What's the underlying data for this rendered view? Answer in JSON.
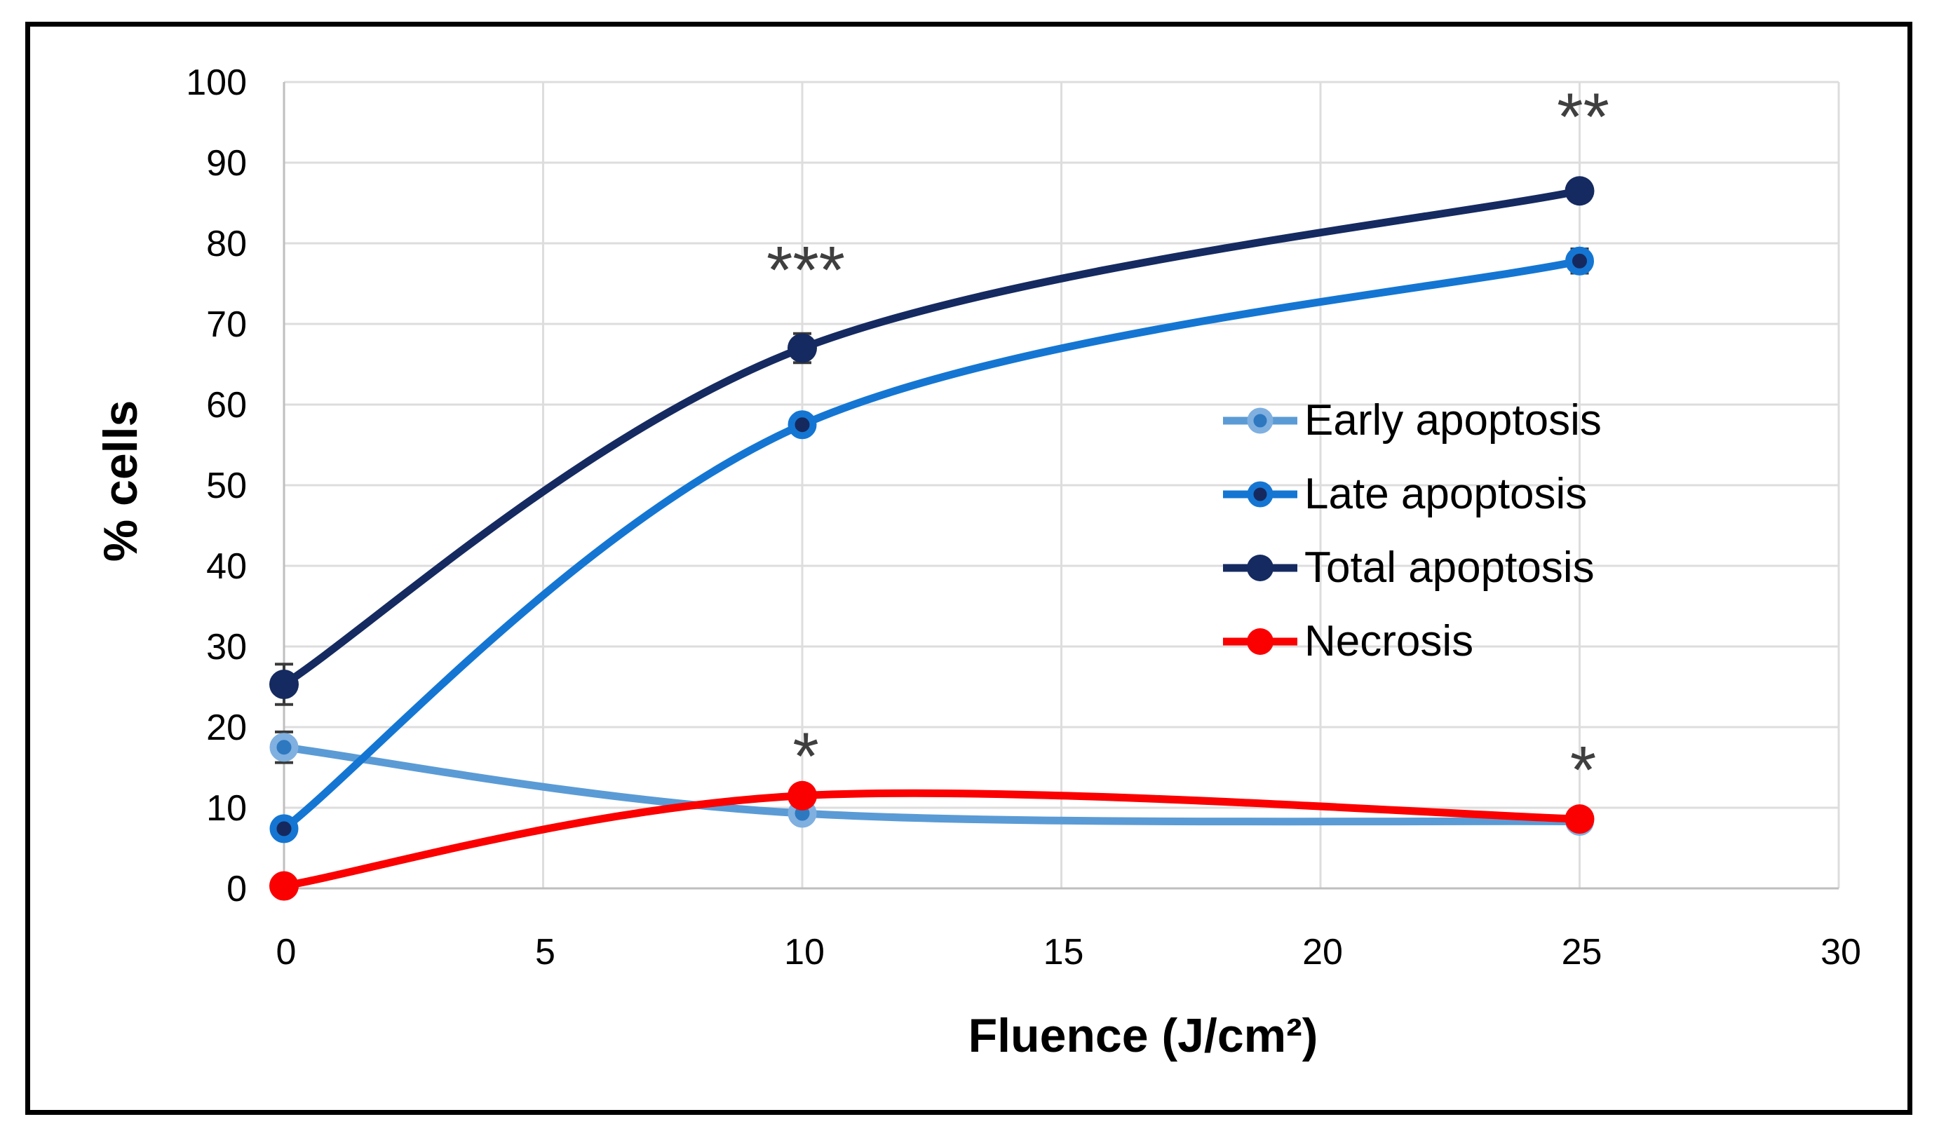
{
  "figure": {
    "background": "#FFFFFF",
    "border_color": "#000000"
  },
  "chart_data": {
    "type": "line",
    "title": "",
    "xlabel": "Fluence (J/cm²)",
    "ylabel": "% cells",
    "xlim": [
      0,
      30
    ],
    "ylim": [
      0,
      100
    ],
    "x_ticks": [
      0,
      5,
      10,
      15,
      20,
      25,
      30
    ],
    "y_ticks": [
      0,
      10,
      20,
      30,
      40,
      50,
      60,
      70,
      80,
      90,
      100
    ],
    "grid": true,
    "legend_position": "overlay-middle-right",
    "x": [
      0,
      10,
      25
    ],
    "series": [
      {
        "name": "Early apoptosis",
        "values": [
          17.5,
          9.3,
          8.3
        ],
        "errors": [
          1.9,
          0,
          0
        ],
        "line_color": "#5B9BD5",
        "marker_fill": "#2E78C0",
        "marker_ring": "#7FB0E0"
      },
      {
        "name": "Late apoptosis",
        "values": [
          7.4,
          57.5,
          77.8
        ],
        "errors": [
          0,
          0,
          1.5
        ],
        "line_color": "#1476D2",
        "marker_fill": "#16295E",
        "marker_ring": "#1476D2"
      },
      {
        "name": "Total apoptosis",
        "values": [
          25.3,
          67.0,
          86.5
        ],
        "errors": [
          2.5,
          1.8,
          0
        ],
        "line_color": "#152A60",
        "marker_fill": "#152A60",
        "marker_ring": "#152A60"
      },
      {
        "name": "Necrosis",
        "values": [
          0.3,
          11.5,
          8.6
        ],
        "errors": [
          0,
          1.0,
          0
        ],
        "line_color": "#FB0000",
        "marker_fill": "#FB0000",
        "marker_ring": "#FB0000"
      }
    ],
    "annotations": [
      {
        "text": "***",
        "x": 10,
        "y": 78.0
      },
      {
        "text": "**",
        "x": 25,
        "y": 97.0
      },
      {
        "text": "*",
        "x": 10,
        "y": 17.7
      },
      {
        "text": "*",
        "x": 25,
        "y": 16.0
      }
    ],
    "colors": {
      "grid": "#DDDDDD",
      "axis": "#BFBFBF",
      "tick_text": "#000000",
      "stars": "#3F3F3F",
      "error_bar": "#3A3A3A"
    }
  }
}
